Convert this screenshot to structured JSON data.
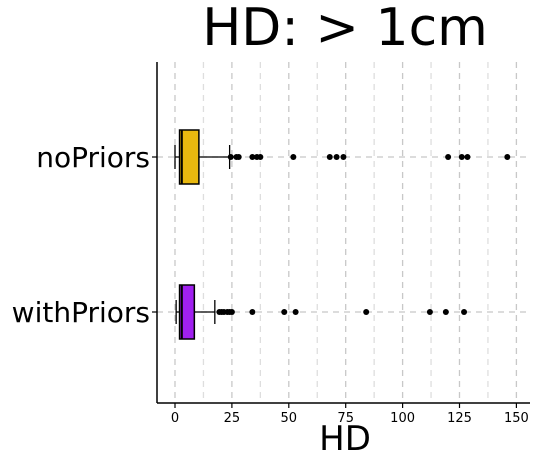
{
  "chart_data": {
    "type": "boxplot",
    "title": "HD: > 1cm",
    "xlabel": "HD",
    "ylabel": "",
    "xlim": [
      -7.5,
      157
    ],
    "xticks": [
      0,
      25,
      50,
      75,
      100,
      125,
      150
    ],
    "grid": {
      "vertical": true,
      "style": "dashed"
    },
    "series": [
      {
        "name": "noPriors",
        "color": "#E8B80F",
        "whisker_low": 0,
        "q1": 2,
        "median": 3,
        "q3": 10.5,
        "whisker_high": 24,
        "outliers": [
          24.5,
          27,
          28,
          34,
          36,
          37.5,
          52,
          68,
          71,
          74,
          120,
          126,
          128.5,
          146
        ]
      },
      {
        "name": "withPriors",
        "color": "#A020F0",
        "whisker_low": 0.5,
        "q1": 2,
        "median": 3,
        "q3": 8.5,
        "whisker_high": 17.5,
        "outliers": [
          19.5,
          20.5,
          21.5,
          23,
          24,
          25,
          34,
          48,
          53,
          84,
          112,
          119,
          127
        ]
      }
    ]
  }
}
